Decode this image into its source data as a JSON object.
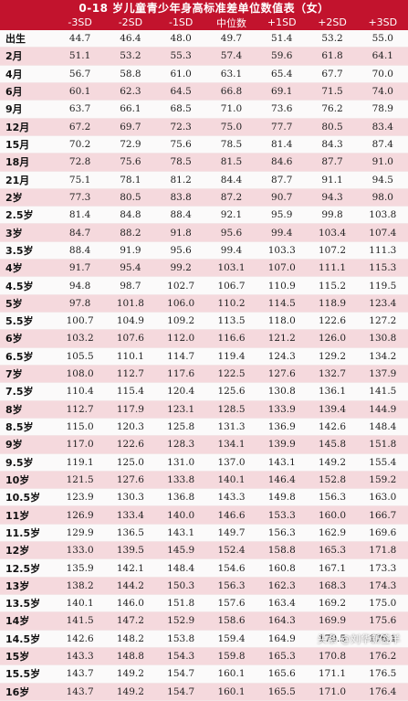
{
  "title": "0-18 岁儿童青少年身高标准差单位数值表（女）",
  "headers": [
    "",
    "-3SD",
    "-2SD",
    "-1SD",
    "中位数",
    "+1SD",
    "+2SD",
    "+3SD"
  ],
  "rows": [
    [
      "出生",
      "44.7",
      "46.4",
      "48.0",
      "49.7",
      "51.4",
      "53.2",
      "55.0"
    ],
    [
      "2月",
      "51.1",
      "53.2",
      "55.3",
      "57.4",
      "59.6",
      "61.8",
      "64.1"
    ],
    [
      "4月",
      "56.7",
      "58.8",
      "61.0",
      "63.1",
      "65.4",
      "67.7",
      "70.0"
    ],
    [
      "6月",
      "60.1",
      "62.3",
      "64.5",
      "66.8",
      "69.1",
      "71.5",
      "74.0"
    ],
    [
      "9月",
      "63.7",
      "66.1",
      "68.5",
      "71.0",
      "73.6",
      "76.2",
      "78.9"
    ],
    [
      "12月",
      "67.2",
      "69.7",
      "72.3",
      "75.0",
      "77.7",
      "80.5",
      "83.4"
    ],
    [
      "15月",
      "70.2",
      "72.9",
      "75.6",
      "78.5",
      "81.4",
      "84.3",
      "87.4"
    ],
    [
      "18月",
      "72.8",
      "75.6",
      "78.5",
      "81.5",
      "84.6",
      "87.7",
      "91.0"
    ],
    [
      "21月",
      "75.1",
      "78.1",
      "81.2",
      "84.4",
      "87.7",
      "91.1",
      "94.5"
    ],
    [
      "2岁",
      "77.3",
      "80.5",
      "83.8",
      "87.2",
      "90.7",
      "94.3",
      "98.0"
    ],
    [
      "2.5岁",
      "81.4",
      "84.8",
      "88.4",
      "92.1",
      "95.9",
      "99.8",
      "103.8"
    ],
    [
      "3岁",
      "84.7",
      "88.2",
      "91.8",
      "95.6",
      "99.4",
      "103.4",
      "107.4"
    ],
    [
      "3.5岁",
      "88.4",
      "91.9",
      "95.6",
      "99.4",
      "103.3",
      "107.2",
      "111.3"
    ],
    [
      "4岁",
      "91.7",
      "95.4",
      "99.2",
      "103.1",
      "107.0",
      "111.1",
      "115.3"
    ],
    [
      "4.5岁",
      "94.8",
      "98.7",
      "102.7",
      "106.7",
      "110.9",
      "115.2",
      "119.5"
    ],
    [
      "5岁",
      "97.8",
      "101.8",
      "106.0",
      "110.2",
      "114.5",
      "118.9",
      "123.4"
    ],
    [
      "5.5岁",
      "100.7",
      "104.9",
      "109.2",
      "113.5",
      "118.0",
      "122.6",
      "127.2"
    ],
    [
      "6岁",
      "103.2",
      "107.6",
      "112.0",
      "116.6",
      "121.2",
      "126.0",
      "130.8"
    ],
    [
      "6.5岁",
      "105.5",
      "110.1",
      "114.7",
      "119.4",
      "124.3",
      "129.2",
      "134.2"
    ],
    [
      "7岁",
      "108.0",
      "112.7",
      "117.6",
      "122.5",
      "127.6",
      "132.7",
      "137.9"
    ],
    [
      "7.5岁",
      "110.4",
      "115.4",
      "120.4",
      "125.6",
      "130.8",
      "136.1",
      "141.5"
    ],
    [
      "8岁",
      "112.7",
      "117.9",
      "123.1",
      "128.5",
      "133.9",
      "139.4",
      "144.9"
    ],
    [
      "8.5岁",
      "115.0",
      "120.3",
      "125.8",
      "131.3",
      "136.9",
      "142.6",
      "148.4"
    ],
    [
      "9岁",
      "117.0",
      "122.6",
      "128.3",
      "134.1",
      "139.9",
      "145.8",
      "151.8"
    ],
    [
      "9.5岁",
      "119.1",
      "125.0",
      "131.0",
      "137.0",
      "143.1",
      "149.2",
      "155.4"
    ],
    [
      "10岁",
      "121.5",
      "127.6",
      "133.8",
      "140.1",
      "146.4",
      "152.8",
      "159.2"
    ],
    [
      "10.5岁",
      "123.9",
      "130.3",
      "136.8",
      "143.3",
      "149.8",
      "156.3",
      "163.0"
    ],
    [
      "11岁",
      "126.9",
      "133.4",
      "140.0",
      "146.6",
      "153.3",
      "160.0",
      "166.7"
    ],
    [
      "11.5岁",
      "129.9",
      "136.5",
      "143.1",
      "149.7",
      "156.3",
      "162.9",
      "169.6"
    ],
    [
      "12岁",
      "133.0",
      "139.5",
      "145.9",
      "152.4",
      "158.8",
      "165.3",
      "171.8"
    ],
    [
      "12.5岁",
      "135.9",
      "142.1",
      "148.4",
      "154.6",
      "160.8",
      "167.1",
      "173.3"
    ],
    [
      "13岁",
      "138.2",
      "144.2",
      "150.3",
      "156.3",
      "162.3",
      "168.3",
      "174.3"
    ],
    [
      "13.5岁",
      "140.1",
      "146.0",
      "151.8",
      "157.6",
      "163.4",
      "169.2",
      "175.0"
    ],
    [
      "14岁",
      "141.5",
      "147.2",
      "152.9",
      "158.6",
      "164.3",
      "169.9",
      "175.6"
    ],
    [
      "14.5岁",
      "142.6",
      "148.2",
      "153.8",
      "159.4",
      "164.9",
      "170.5",
      "176.1"
    ],
    [
      "15岁",
      "143.3",
      "148.8",
      "154.3",
      "159.8",
      "165.3",
      "170.8",
      "176.2"
    ],
    [
      "15.5岁",
      "143.7",
      "149.2",
      "154.7",
      "160.1",
      "165.6",
      "171.1",
      "176.5"
    ],
    [
      "16岁",
      "143.7",
      "149.2",
      "154.7",
      "160.1",
      "165.5",
      "171.0",
      "176.4"
    ]
  ],
  "watermark": "头条 @刘华新签羊",
  "colors": {
    "header_bg": "#c2132d",
    "alt_row": "#f5d9dd",
    "base_row": "#fbfafa"
  }
}
